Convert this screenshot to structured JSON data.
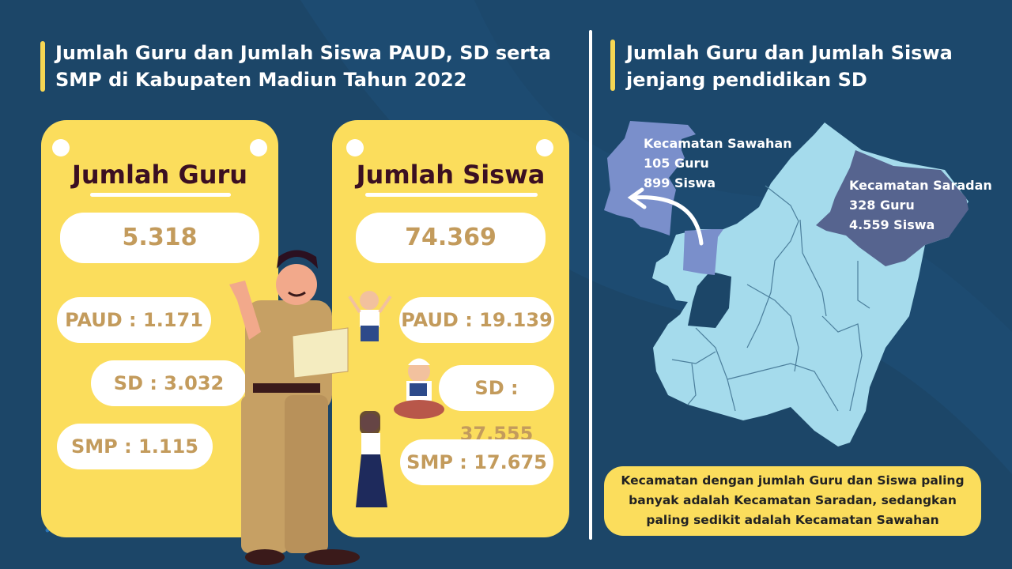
{
  "left_panel": {
    "title_line1": "Jumlah Guru dan Jumlah Siswa PAUD, SD serta",
    "title_line2": "SMP di Kabupaten Madiun Tahun 2022",
    "guru_card": {
      "title": "Jumlah Guru",
      "total": "5.318",
      "paud": "PAUD : 1.171",
      "sd": "SD : 3.032",
      "smp": "SMP : 1.115"
    },
    "siswa_card": {
      "title": "Jumlah Siswa",
      "total": "74.369",
      "paud": "PAUD : 19.139",
      "sd": "SD : 37.555",
      "smp": "SMP : 17.675"
    }
  },
  "right_panel": {
    "title_line1": "Jumlah Guru dan Jumlah Siswa",
    "title_line2": "jenjang pendidikan SD",
    "sawahan": {
      "name": "Kecamatan Sawahan",
      "guru": "105 Guru",
      "siswa": "899 Siswa"
    },
    "saradan": {
      "name": "Kecamatan Saradan",
      "guru": "328 Guru",
      "siswa": "4.559 Siswa"
    },
    "note_line1": "Kecamatan dengan jumlah Guru dan Siswa paling",
    "note_line2": "banyak adalah Kecamatan Saradan, sedangkan",
    "note_line3": "paling sedikit adalah Kecamatan Sawahan"
  },
  "colors": {
    "background": "#1c4668",
    "card": "#fbdd5c",
    "map_base": "#a5dbec",
    "sawahan": "#7a8fcb",
    "saradan": "#56648f",
    "number_text": "#c39b5c"
  }
}
